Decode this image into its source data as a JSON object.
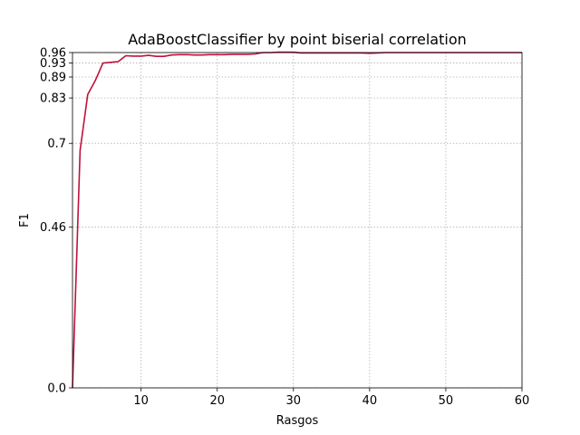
{
  "chart_data": {
    "type": "line",
    "title": "AdaBoostClassifier by point biserial correlation",
    "xlabel": "Rasgos",
    "ylabel": "F1",
    "xlim": [
      1,
      60
    ],
    "ylim": [
      0,
      0.96
    ],
    "xticks": [
      10,
      20,
      30,
      40,
      50,
      60
    ],
    "yticks": [
      0.0,
      0.46,
      0.7,
      0.83,
      0.89,
      0.93,
      0.96
    ],
    "ytick_labels": [
      "0.0",
      "0.46",
      "0.7",
      "0.83",
      "0.89",
      "0.93",
      "0.96"
    ],
    "grid": true,
    "line_color": "#c0103c",
    "series": [
      {
        "x": [
          1,
          2,
          3,
          4,
          5,
          6,
          7,
          8,
          9,
          10,
          11,
          12,
          13,
          14,
          15,
          16,
          17,
          18,
          19,
          20,
          21,
          22,
          23,
          24,
          25,
          26,
          27,
          28,
          29,
          30,
          31,
          32,
          33,
          34,
          35,
          36,
          37,
          38,
          39,
          40,
          41,
          42,
          43,
          44,
          45,
          46,
          47,
          48,
          49,
          50,
          51,
          52,
          53,
          54,
          55,
          56,
          57,
          58,
          59,
          60
        ],
        "y": [
          0.0,
          0.68,
          0.84,
          0.88,
          0.93,
          0.932,
          0.934,
          0.951,
          0.95,
          0.95,
          0.952,
          0.949,
          0.949,
          0.953,
          0.954,
          0.954,
          0.953,
          0.953,
          0.954,
          0.954,
          0.954,
          0.955,
          0.955,
          0.955,
          0.956,
          0.96,
          0.96,
          0.961,
          0.961,
          0.961,
          0.959,
          0.959,
          0.959,
          0.959,
          0.959,
          0.959,
          0.959,
          0.959,
          0.959,
          0.958,
          0.959,
          0.96,
          0.96,
          0.96,
          0.96,
          0.96,
          0.96,
          0.96,
          0.96,
          0.96,
          0.96,
          0.96,
          0.96,
          0.96,
          0.96,
          0.96,
          0.96,
          0.96,
          0.96,
          0.96
        ]
      }
    ]
  }
}
